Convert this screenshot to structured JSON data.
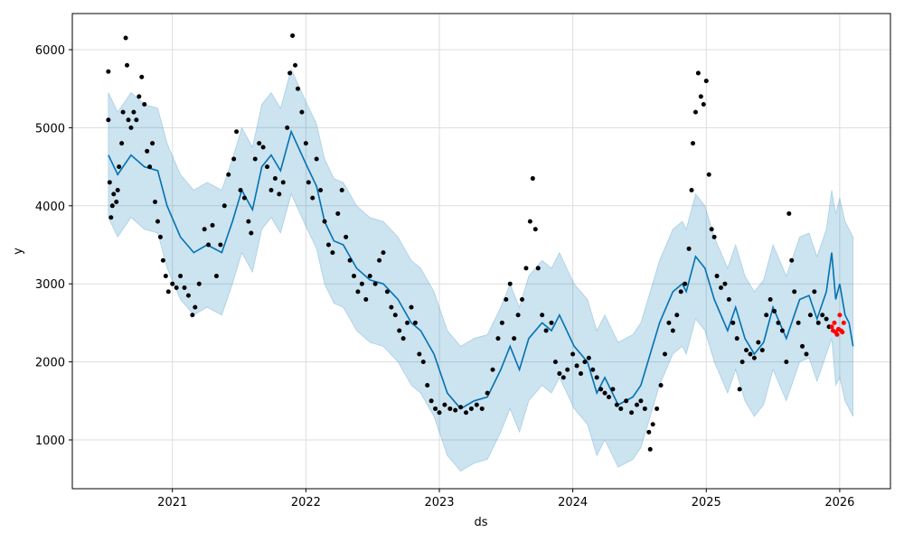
{
  "chart_data": {
    "type": "line",
    "x_label": "ds",
    "y_label": "y",
    "xlim": [
      2020.25,
      2026.38
    ],
    "ylim": [
      375,
      6463
    ],
    "xticks": [
      2021,
      2022,
      2023,
      2024,
      2025,
      2026
    ],
    "yticks": [
      1000,
      2000,
      3000,
      4000,
      5000,
      6000
    ],
    "grid": true,
    "series": [
      {
        "type": "line",
        "color": "#0072b2",
        "x": [
          2020.52,
          2020.59,
          2020.69,
          2020.79,
          2020.89,
          2020.96,
          2021.06,
          2021.16,
          2021.26,
          2021.37,
          2021.45,
          2021.52,
          2021.6,
          2021.67,
          2021.74,
          2021.81,
          2021.89,
          2022.01,
          2022.08,
          2022.14,
          2022.21,
          2022.28,
          2022.38,
          2022.48,
          2022.58,
          2022.69,
          2022.79,
          2022.86,
          2022.96,
          2023.06,
          2023.16,
          2023.26,
          2023.36,
          2023.46,
          2023.53,
          2023.6,
          2023.67,
          2023.77,
          2023.84,
          2023.9,
          2024.01,
          2024.11,
          2024.18,
          2024.24,
          2024.34,
          2024.45,
          2024.51,
          2024.58,
          2024.65,
          2024.75,
          2024.82,
          2024.85,
          2024.92,
          2024.99,
          2025.06,
          2025.16,
          2025.22,
          2025.29,
          2025.36,
          2025.43,
          2025.5,
          2025.6,
          2025.7,
          2025.77,
          2025.83,
          2025.9,
          2025.94,
          2025.97,
          2026.0,
          2026.04,
          2026.07,
          2026.1
        ],
        "values": [
          4650,
          4400,
          4650,
          4500,
          4450,
          4000,
          3600,
          3400,
          3500,
          3400,
          3800,
          4200,
          3950,
          4500,
          4650,
          4450,
          4950,
          4500,
          4250,
          3800,
          3550,
          3500,
          3200,
          3050,
          3000,
          2800,
          2500,
          2400,
          2100,
          1600,
          1400,
          1500,
          1550,
          1900,
          2200,
          1900,
          2300,
          2500,
          2400,
          2600,
          2200,
          2000,
          1600,
          1800,
          1450,
          1550,
          1700,
          2100,
          2500,
          2900,
          3000,
          2900,
          3350,
          3200,
          2800,
          2400,
          2700,
          2300,
          2100,
          2250,
          2700,
          2300,
          2800,
          2850,
          2550,
          2900,
          3400,
          2800,
          3000,
          2600,
          2500,
          2200
        ],
        "lower": [
          3850,
          3600,
          3850,
          3700,
          3650,
          3200,
          2800,
          2600,
          2700,
          2600,
          3000,
          3400,
          3150,
          3700,
          3850,
          3650,
          4150,
          3700,
          3450,
          3000,
          2750,
          2700,
          2400,
          2250,
          2200,
          2000,
          1700,
          1600,
          1300,
          800,
          600,
          700,
          750,
          1100,
          1400,
          1100,
          1500,
          1700,
          1600,
          1800,
          1400,
          1200,
          800,
          1000,
          650,
          750,
          900,
          1300,
          1700,
          2100,
          2200,
          2100,
          2550,
          2400,
          2000,
          1600,
          1900,
          1500,
          1300,
          1450,
          1900,
          1500,
          2000,
          2050,
          1750,
          2100,
          2300,
          1700,
          1800,
          1500,
          1400,
          1300
        ],
        "upper": [
          5450,
          5200,
          5450,
          5300,
          5250,
          4800,
          4400,
          4200,
          4300,
          4200,
          4600,
          5000,
          4750,
          5300,
          5450,
          5250,
          5750,
          5300,
          5050,
          4600,
          4350,
          4300,
          4000,
          3850,
          3800,
          3600,
          3300,
          3200,
          2900,
          2400,
          2200,
          2300,
          2350,
          2700,
          3000,
          2700,
          3100,
          3300,
          3200,
          3400,
          3000,
          2800,
          2400,
          2600,
          2250,
          2350,
          2500,
          2900,
          3300,
          3700,
          3800,
          3700,
          4150,
          4000,
          3600,
          3200,
          3500,
          3100,
          2900,
          3050,
          3500,
          3100,
          3600,
          3650,
          3350,
          3700,
          4200,
          3900,
          4100,
          3800,
          3700,
          3600
        ]
      },
      {
        "type": "scatter",
        "color": "#000000",
        "x": [
          2020.52,
          2020.52,
          2020.53,
          2020.54,
          2020.55,
          2020.56,
          2020.58,
          2020.59,
          2020.6,
          2020.62,
          2020.63,
          2020.65,
          2020.66,
          2020.67,
          2020.69,
          2020.71,
          2020.73,
          2020.75,
          2020.77,
          2020.79,
          2020.81,
          2020.83,
          2020.85,
          2020.87,
          2020.89,
          2020.91,
          2020.93,
          2020.95,
          2020.97,
          2021.0,
          2021.03,
          2021.06,
          2021.09,
          2021.12,
          2021.15,
          2021.17,
          2021.2,
          2021.24,
          2021.27,
          2021.3,
          2021.33,
          2021.36,
          2021.39,
          2021.42,
          2021.46,
          2021.48,
          2021.51,
          2021.54,
          2021.57,
          2021.59,
          2021.62,
          2021.65,
          2021.68,
          2021.71,
          2021.74,
          2021.77,
          2021.8,
          2021.83,
          2021.86,
          2021.88,
          2021.9,
          2021.92,
          2021.94,
          2021.97,
          2022.0,
          2022.02,
          2022.05,
          2022.08,
          2022.11,
          2022.14,
          2022.17,
          2022.2,
          2022.24,
          2022.27,
          2022.3,
          2022.33,
          2022.36,
          2022.39,
          2022.42,
          2022.45,
          2022.48,
          2022.52,
          2022.55,
          2022.58,
          2022.61,
          2022.64,
          2022.67,
          2022.7,
          2022.73,
          2022.76,
          2022.79,
          2022.82,
          2022.85,
          2022.88,
          2022.91,
          2022.94,
          2022.97,
          2023.0,
          2023.04,
          2023.08,
          2023.12,
          2023.16,
          2023.2,
          2023.24,
          2023.28,
          2023.32,
          2023.36,
          2023.4,
          2023.44,
          2023.47,
          2023.5,
          2023.53,
          2023.56,
          2023.59,
          2023.62,
          2023.65,
          2023.68,
          2023.7,
          2023.72,
          2023.74,
          2023.77,
          2023.8,
          2023.84,
          2023.87,
          2023.9,
          2023.93,
          2023.96,
          2024.0,
          2024.03,
          2024.06,
          2024.09,
          2024.12,
          2024.15,
          2024.18,
          2024.21,
          2024.24,
          2024.27,
          2024.3,
          2024.33,
          2024.36,
          2024.4,
          2024.44,
          2024.48,
          2024.51,
          2024.54,
          2024.57,
          2024.58,
          2024.6,
          2024.63,
          2024.66,
          2024.69,
          2024.72,
          2024.75,
          2024.78,
          2024.81,
          2024.84,
          2024.87,
          2024.89,
          2024.9,
          2024.92,
          2024.94,
          2024.96,
          2024.98,
          2025.0,
          2025.02,
          2025.04,
          2025.06,
          2025.08,
          2025.11,
          2025.14,
          2025.17,
          2025.2,
          2025.23,
          2025.25,
          2025.27,
          2025.3,
          2025.33,
          2025.36,
          2025.39,
          2025.42,
          2025.45,
          2025.48,
          2025.51,
          2025.54,
          2025.57,
          2025.6,
          2025.62,
          2025.64,
          2025.66,
          2025.69,
          2025.72,
          2025.75,
          2025.78,
          2025.81,
          2025.84,
          2025.87,
          2025.9,
          2025.92
        ],
        "values": [
          5720,
          5100,
          4300,
          3850,
          4000,
          4150,
          4050,
          4200,
          4500,
          4800,
          5200,
          6150,
          5800,
          5100,
          5000,
          5200,
          5100,
          5400,
          5650,
          5300,
          4700,
          4500,
          4800,
          4050,
          3800,
          3600,
          3300,
          3100,
          2900,
          3000,
          2950,
          3100,
          2950,
          2850,
          2600,
          2700,
          3000,
          3700,
          3500,
          3750,
          3100,
          3500,
          4000,
          4400,
          4600,
          4950,
          4200,
          4100,
          3800,
          3650,
          4600,
          4800,
          4750,
          4500,
          4200,
          4350,
          4150,
          4300,
          5000,
          5700,
          6180,
          5800,
          5500,
          5200,
          4800,
          4300,
          4100,
          4600,
          4200,
          3800,
          3500,
          3400,
          3900,
          4200,
          3600,
          3300,
          3100,
          2900,
          3000,
          2800,
          3100,
          3000,
          3300,
          3400,
          2900,
          2700,
          2600,
          2400,
          2300,
          2500,
          2700,
          2500,
          2100,
          2000,
          1700,
          1500,
          1400,
          1350,
          1450,
          1400,
          1380,
          1420,
          1350,
          1400,
          1450,
          1400,
          1600,
          1900,
          2300,
          2500,
          2800,
          3000,
          2300,
          2600,
          2800,
          3200,
          3800,
          4350,
          3700,
          3200,
          2600,
          2400,
          2500,
          2000,
          1850,
          1800,
          1900,
          2100,
          1950,
          1850,
          2000,
          2050,
          1900,
          1800,
          1650,
          1600,
          1550,
          1650,
          1450,
          1400,
          1500,
          1350,
          1450,
          1500,
          1400,
          1100,
          880,
          1200,
          1400,
          1700,
          2100,
          2500,
          2400,
          2600,
          2900,
          3000,
          3450,
          4200,
          4800,
          5200,
          5700,
          5400,
          5300,
          5600,
          4400,
          3700,
          3600,
          3100,
          2950,
          3000,
          2800,
          2500,
          2300,
          1650,
          2000,
          2150,
          2100,
          2050,
          2250,
          2150,
          2600,
          2800,
          2650,
          2500,
          2400,
          2000,
          3900,
          3300,
          2900,
          2500,
          2200,
          2100,
          2600,
          2900,
          2500,
          2600,
          2550,
          2450
        ]
      },
      {
        "type": "scatter",
        "color": "#ff0000",
        "x": [
          2025.94,
          2025.95,
          2025.96,
          2025.97,
          2025.98,
          2025.99,
          2026.0,
          2026.01,
          2026.02,
          2026.03
        ],
        "values": [
          2450,
          2400,
          2500,
          2380,
          2350,
          2420,
          2600,
          2400,
          2380,
          2500
        ]
      }
    ]
  }
}
